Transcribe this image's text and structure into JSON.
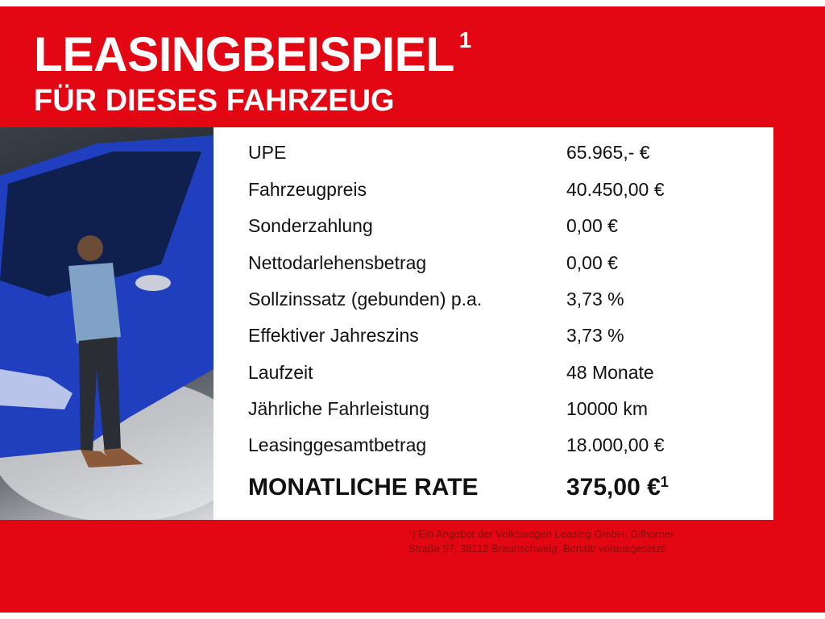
{
  "header": {
    "title": "LEASINGBEISPIEL",
    "title_sup": "1",
    "subtitle": "FÜR DIESES FAHRZEUG"
  },
  "colors": {
    "brand_red": "#e30613",
    "car_blue": "#1f3fbf"
  },
  "rows": [
    {
      "label": "UPE",
      "value": "65.965,- €"
    },
    {
      "label": "Fahrzeugpreis",
      "value": "40.450,00 €"
    },
    {
      "label": "Sonderzahlung",
      "value": "0,00 €"
    },
    {
      "label": "Nettodarlehensbetrag",
      "value": "0,00 €"
    },
    {
      "label": "Sollzinssatz (gebunden) p.a.",
      "value": "3,73 %"
    },
    {
      "label": "Effektiver Jahreszins",
      "value": "3,73 %"
    },
    {
      "label": "Laufzeit",
      "value": "48 Monate"
    },
    {
      "label": "Jährliche Fahrleistung",
      "value": "10000 km"
    },
    {
      "label": "Leasinggesamtbetrag",
      "value": "18.000,00 €"
    }
  ],
  "total": {
    "label": "MONATLICHE RATE",
    "value": "375,00 €",
    "sup": "1"
  },
  "footnote": {
    "line1": "¹) Ein Angebot der Volkswagen Leasing GmbH, Gifhorner",
    "line2": "Straße 57, 38112 Braunschweig. Bonität vorausgesetzt!"
  }
}
